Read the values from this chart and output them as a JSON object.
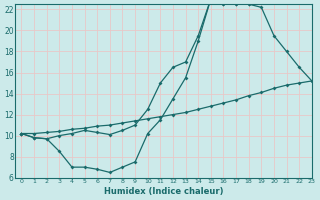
{
  "bg_color": "#cceaea",
  "grid_color": "#e8c8c8",
  "line_color": "#1a6b6b",
  "line1_x": [
    0,
    1,
    2,
    3,
    4,
    5,
    6,
    7,
    8,
    9,
    10,
    11,
    12,
    13,
    14,
    15,
    16,
    17,
    18,
    19,
    20,
    21,
    22,
    23
  ],
  "line1_y": [
    10.2,
    9.8,
    9.7,
    10.0,
    10.2,
    10.5,
    10.3,
    10.1,
    10.5,
    11.0,
    12.5,
    15.0,
    16.5,
    17.0,
    19.5,
    23.0,
    22.5,
    22.5,
    22.5,
    22.2,
    19.5,
    18.0,
    16.5,
    15.2
  ],
  "line2_x": [
    0,
    1,
    2,
    3,
    4,
    5,
    6,
    7,
    8,
    9,
    10,
    11,
    12,
    13,
    14,
    15,
    16,
    17,
    18
  ],
  "line2_y": [
    10.2,
    9.8,
    9.7,
    8.5,
    7.0,
    7.0,
    6.8,
    6.5,
    7.0,
    7.5,
    10.2,
    11.5,
    13.5,
    15.5,
    19.0,
    23.0,
    22.5,
    22.5,
    22.5
  ],
  "line3_x": [
    0,
    1,
    2,
    3,
    4,
    5,
    6,
    7,
    8,
    9,
    10,
    11,
    12,
    13,
    14,
    15,
    16,
    17,
    18,
    19,
    20,
    21,
    22,
    23
  ],
  "line3_y": [
    10.2,
    10.2,
    10.3,
    10.4,
    10.6,
    10.7,
    10.9,
    11.0,
    11.2,
    11.4,
    11.6,
    11.8,
    12.0,
    12.2,
    12.5,
    12.8,
    13.1,
    13.4,
    13.8,
    14.1,
    14.5,
    14.8,
    15.0,
    15.2
  ],
  "xlim": [
    -0.5,
    23
  ],
  "ylim": [
    6,
    22.5
  ],
  "xticks": [
    0,
    1,
    2,
    3,
    4,
    5,
    6,
    7,
    8,
    9,
    10,
    11,
    12,
    13,
    14,
    15,
    16,
    17,
    18,
    19,
    20,
    21,
    22,
    23
  ],
  "yticks": [
    6,
    8,
    10,
    12,
    14,
    16,
    18,
    20,
    22
  ],
  "xlabel": "Humidex (Indice chaleur)"
}
